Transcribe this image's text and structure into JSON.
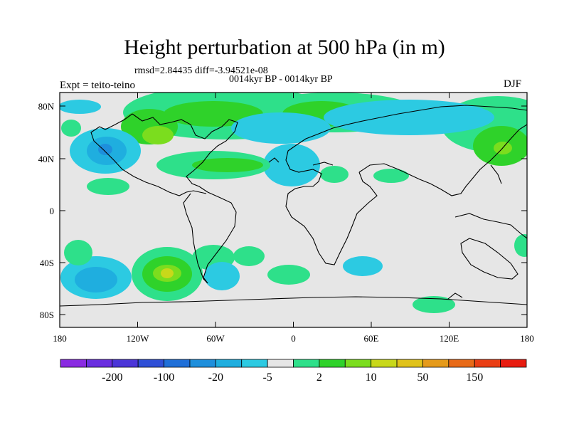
{
  "title": "Height perturbation at 500 hPa (in m)",
  "stats": {
    "rmsd_label": "rmsd=",
    "rmsd_value": "2.84435",
    "diff_label": "diff=",
    "diff_value": "-3.94521e-08"
  },
  "case_label": "0014kyr BP - 0014kyr BP",
  "expt_label": "Expt = teito-teino",
  "season": "DJF",
  "lon_ticks": [
    "180",
    "120W",
    "60W",
    "0",
    "60E",
    "120E",
    "180"
  ],
  "lat_ticks": [
    "80N",
    "40N",
    "0",
    "40S",
    "80S"
  ],
  "colorbar": {
    "labels": [
      "-200",
      "-100",
      "-20",
      "-5",
      "2",
      "10",
      "50",
      "150"
    ],
    "colors": [
      "#8a2be2",
      "#6a2ee0",
      "#4b35d8",
      "#2f4fd6",
      "#1f6fd8",
      "#1e8fdc",
      "#1faedf",
      "#2ccae2",
      "#e6e6e6",
      "#2ee08a",
      "#2fd22a",
      "#7bdd1e",
      "#c8d81a",
      "#e0c21a",
      "#e59a1a",
      "#e86a18",
      "#ea3e14",
      "#e81c10"
    ]
  },
  "fill_colors": {
    "land_bg": "#e6e6e6",
    "light_blue": "#2ccae2",
    "blue": "#1faedf",
    "mid_blue": "#1e8fdc",
    "dark_blue": "#1f6fd8",
    "aqua_green": "#2ee08a",
    "green": "#2fd22a",
    "yellow_green": "#7bdd1e",
    "yellow": "#c8d81a"
  }
}
